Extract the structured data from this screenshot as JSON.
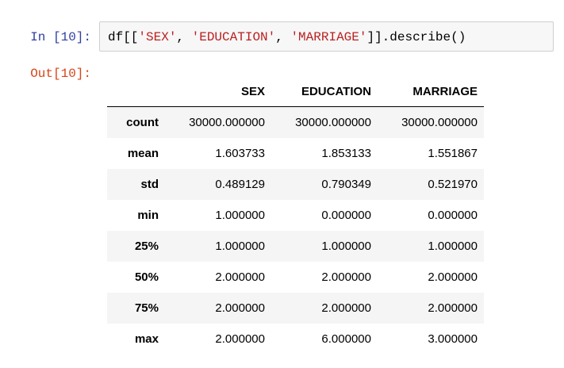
{
  "cell": {
    "in_prompt": "In [10]:",
    "out_prompt": "Out[10]:",
    "code": {
      "prefix": "df[[",
      "str1": "'SEX'",
      "sep1": ", ",
      "str2": "'EDUCATION'",
      "sep2": ", ",
      "str3": "'MARRIAGE'",
      "suffix": "]].describe()"
    }
  },
  "table": {
    "columns": [
      "",
      "SEX",
      "EDUCATION",
      "MARRIAGE"
    ],
    "rows": [
      {
        "label": "count",
        "values": [
          "30000.000000",
          "30000.000000",
          "30000.000000"
        ]
      },
      {
        "label": "mean",
        "values": [
          "1.603733",
          "1.853133",
          "1.551867"
        ]
      },
      {
        "label": "std",
        "values": [
          "0.489129",
          "0.790349",
          "0.521970"
        ]
      },
      {
        "label": "min",
        "values": [
          "1.000000",
          "0.000000",
          "0.000000"
        ]
      },
      {
        "label": "25%",
        "values": [
          "1.000000",
          "1.000000",
          "1.000000"
        ]
      },
      {
        "label": "50%",
        "values": [
          "2.000000",
          "2.000000",
          "2.000000"
        ]
      },
      {
        "label": "75%",
        "values": [
          "2.000000",
          "2.000000",
          "2.000000"
        ]
      },
      {
        "label": "max",
        "values": [
          "2.000000",
          "6.000000",
          "3.000000"
        ]
      }
    ]
  },
  "colors": {
    "in_prompt": "#303f9f",
    "out_prompt": "#d84315",
    "string_literal": "#ba2121",
    "input_background": "#f7f7f7",
    "stripe_background": "#f5f5f5"
  }
}
